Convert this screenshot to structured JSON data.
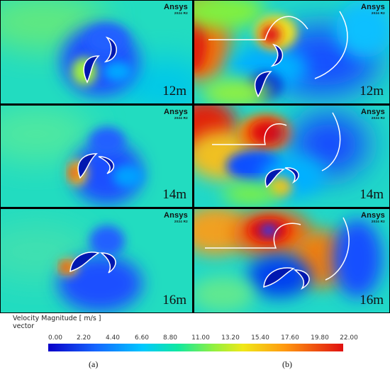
{
  "brand": "Ansys",
  "version": "2024 R2",
  "panels": [
    {
      "column": "a",
      "distance": "12m"
    },
    {
      "column": "b",
      "distance": "12m"
    },
    {
      "column": "a",
      "distance": "14m"
    },
    {
      "column": "b",
      "distance": "14m"
    },
    {
      "column": "a",
      "distance": "16m"
    },
    {
      "column": "b",
      "distance": "16m"
    }
  ],
  "legend": {
    "title": "Velocity Magnitude [ m/s ]",
    "subtitle": "vector",
    "ticks": [
      "0.00",
      "2.20",
      "4.40",
      "6.60",
      "8.80",
      "11.00",
      "13.20",
      "15.40",
      "17.60",
      "19.80",
      "22.00"
    ],
    "min": 0,
    "max": 22
  },
  "captions": {
    "left": "(a)",
    "right": "(b)"
  },
  "colors": {
    "background_field": "#00d8c8",
    "low": "#1a3cff",
    "high": "#e01010"
  }
}
